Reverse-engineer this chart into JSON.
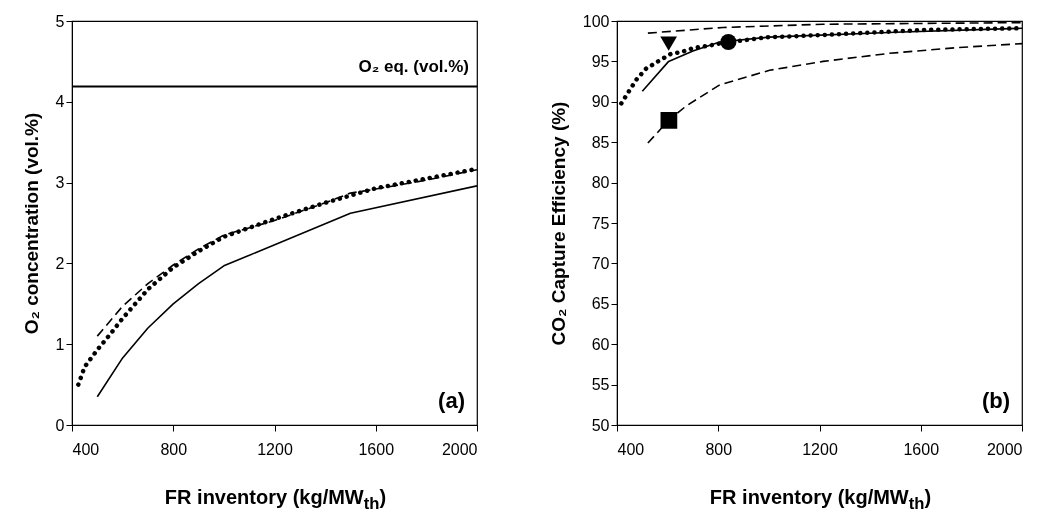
{
  "chart_data": [
    {
      "type": "line",
      "xlabel": "FR inventory (kg/MW$_{th}$)",
      "ylabel": "O₂ concentration (vol.%)",
      "xlim": [
        400,
        2000
      ],
      "xticks": [
        400,
        800,
        1200,
        1600,
        2000
      ],
      "ylim": [
        0,
        5
      ],
      "yticks": [
        0,
        1,
        2,
        3,
        4,
        5
      ],
      "grid": false,
      "series": [
        {
          "color": "#000000",
          "line_style": "solid",
          "x": [
            500,
            600,
            700,
            800,
            900,
            1000,
            1500,
            2000
          ],
          "values": [
            0.35,
            0.83,
            1.2,
            1.5,
            1.75,
            1.97,
            2.62,
            2.96
          ]
        },
        {
          "color": "#000000",
          "line_style": "dashed",
          "x": [
            500,
            600,
            700,
            800,
            900,
            1000,
            1200,
            1400,
            1500,
            1600,
            1800,
            2000
          ],
          "values": [
            1.1,
            1.47,
            1.75,
            1.98,
            2.18,
            2.35,
            2.53,
            2.75,
            2.87,
            2.92,
            3.03,
            3.16
          ]
        },
        {
          "color": "#000000",
          "line_style": "dotted",
          "x": [
            425,
            450,
            500,
            550,
            600,
            700,
            800,
            900,
            1000,
            1200,
            1400,
            1600,
            1800,
            2000
          ],
          "values": [
            0.5,
            0.72,
            0.93,
            1.12,
            1.32,
            1.68,
            1.95,
            2.15,
            2.33,
            2.55,
            2.75,
            2.93,
            3.05,
            3.17
          ]
        }
      ],
      "ref_lines": [
        {
          "axis": "y",
          "value": 4.19,
          "label": "O₂ eq. (vol.%)"
        }
      ],
      "annotations": [
        "(a)"
      ]
    },
    {
      "type": "line",
      "xlabel": "FR inventory (kg/MW$_{th}$)",
      "ylabel": "CO₂ Capture Efficiency (%)",
      "xlim": [
        400,
        2000
      ],
      "xticks": [
        400,
        800,
        1200,
        1600,
        2000
      ],
      "ylim": [
        50,
        100
      ],
      "yticks": [
        50,
        55,
        60,
        65,
        70,
        75,
        80,
        85,
        90,
        95,
        100
      ],
      "grid": false,
      "series": [
        {
          "color": "#000000",
          "line_style": "dashed",
          "x": [
            522,
            819,
            1214,
            1609,
            2000
          ],
          "values": [
            98.5,
            99.2,
            99.6,
            99.7,
            99.8
          ]
        },
        {
          "color": "#000000",
          "line_style": "solid",
          "x": [
            500,
            604,
            700,
            806,
            1000,
            1500,
            2000
          ],
          "values": [
            91.3,
            95.0,
            96.3,
            97.4,
            98.0,
            98.6,
            99.1
          ]
        },
        {
          "color": "#000000",
          "line_style": "dashed",
          "x": [
            522,
            604,
            674,
            806,
            1003,
            1214,
            1477,
            1741,
            2000
          ],
          "values": [
            84.9,
            87.7,
            89.5,
            92.1,
            93.9,
            95.0,
            96.0,
            96.7,
            97.2
          ]
        },
        {
          "color": "#000000",
          "line_style": "dotted",
          "x": [
            417,
            447,
            478,
            515,
            562,
            611,
            658,
            707,
            756,
            803,
            898,
            993,
            1089,
            1234,
            1425,
            1616,
            1807,
            2000
          ],
          "values": [
            89.8,
            91.3,
            92.8,
            94.1,
            95.0,
            95.9,
            96.2,
            96.7,
            96.9,
            97.2,
            97.6,
            98.0,
            98.1,
            98.3,
            98.6,
            98.9,
            99.0,
            99.1
          ]
        },
        {
          "type": "scatter",
          "marker": "circle",
          "color": "#000000",
          "x": [
            840
          ],
          "values": [
            97.4
          ]
        },
        {
          "type": "scatter",
          "marker": "triangle",
          "color": "#000000",
          "x": [
            604
          ],
          "values": [
            97.2
          ]
        },
        {
          "type": "scatter",
          "marker": "square",
          "color": "#000000",
          "x": [
            605
          ],
          "values": [
            87.7
          ]
        }
      ],
      "annotations": [
        "(b)"
      ]
    }
  ]
}
